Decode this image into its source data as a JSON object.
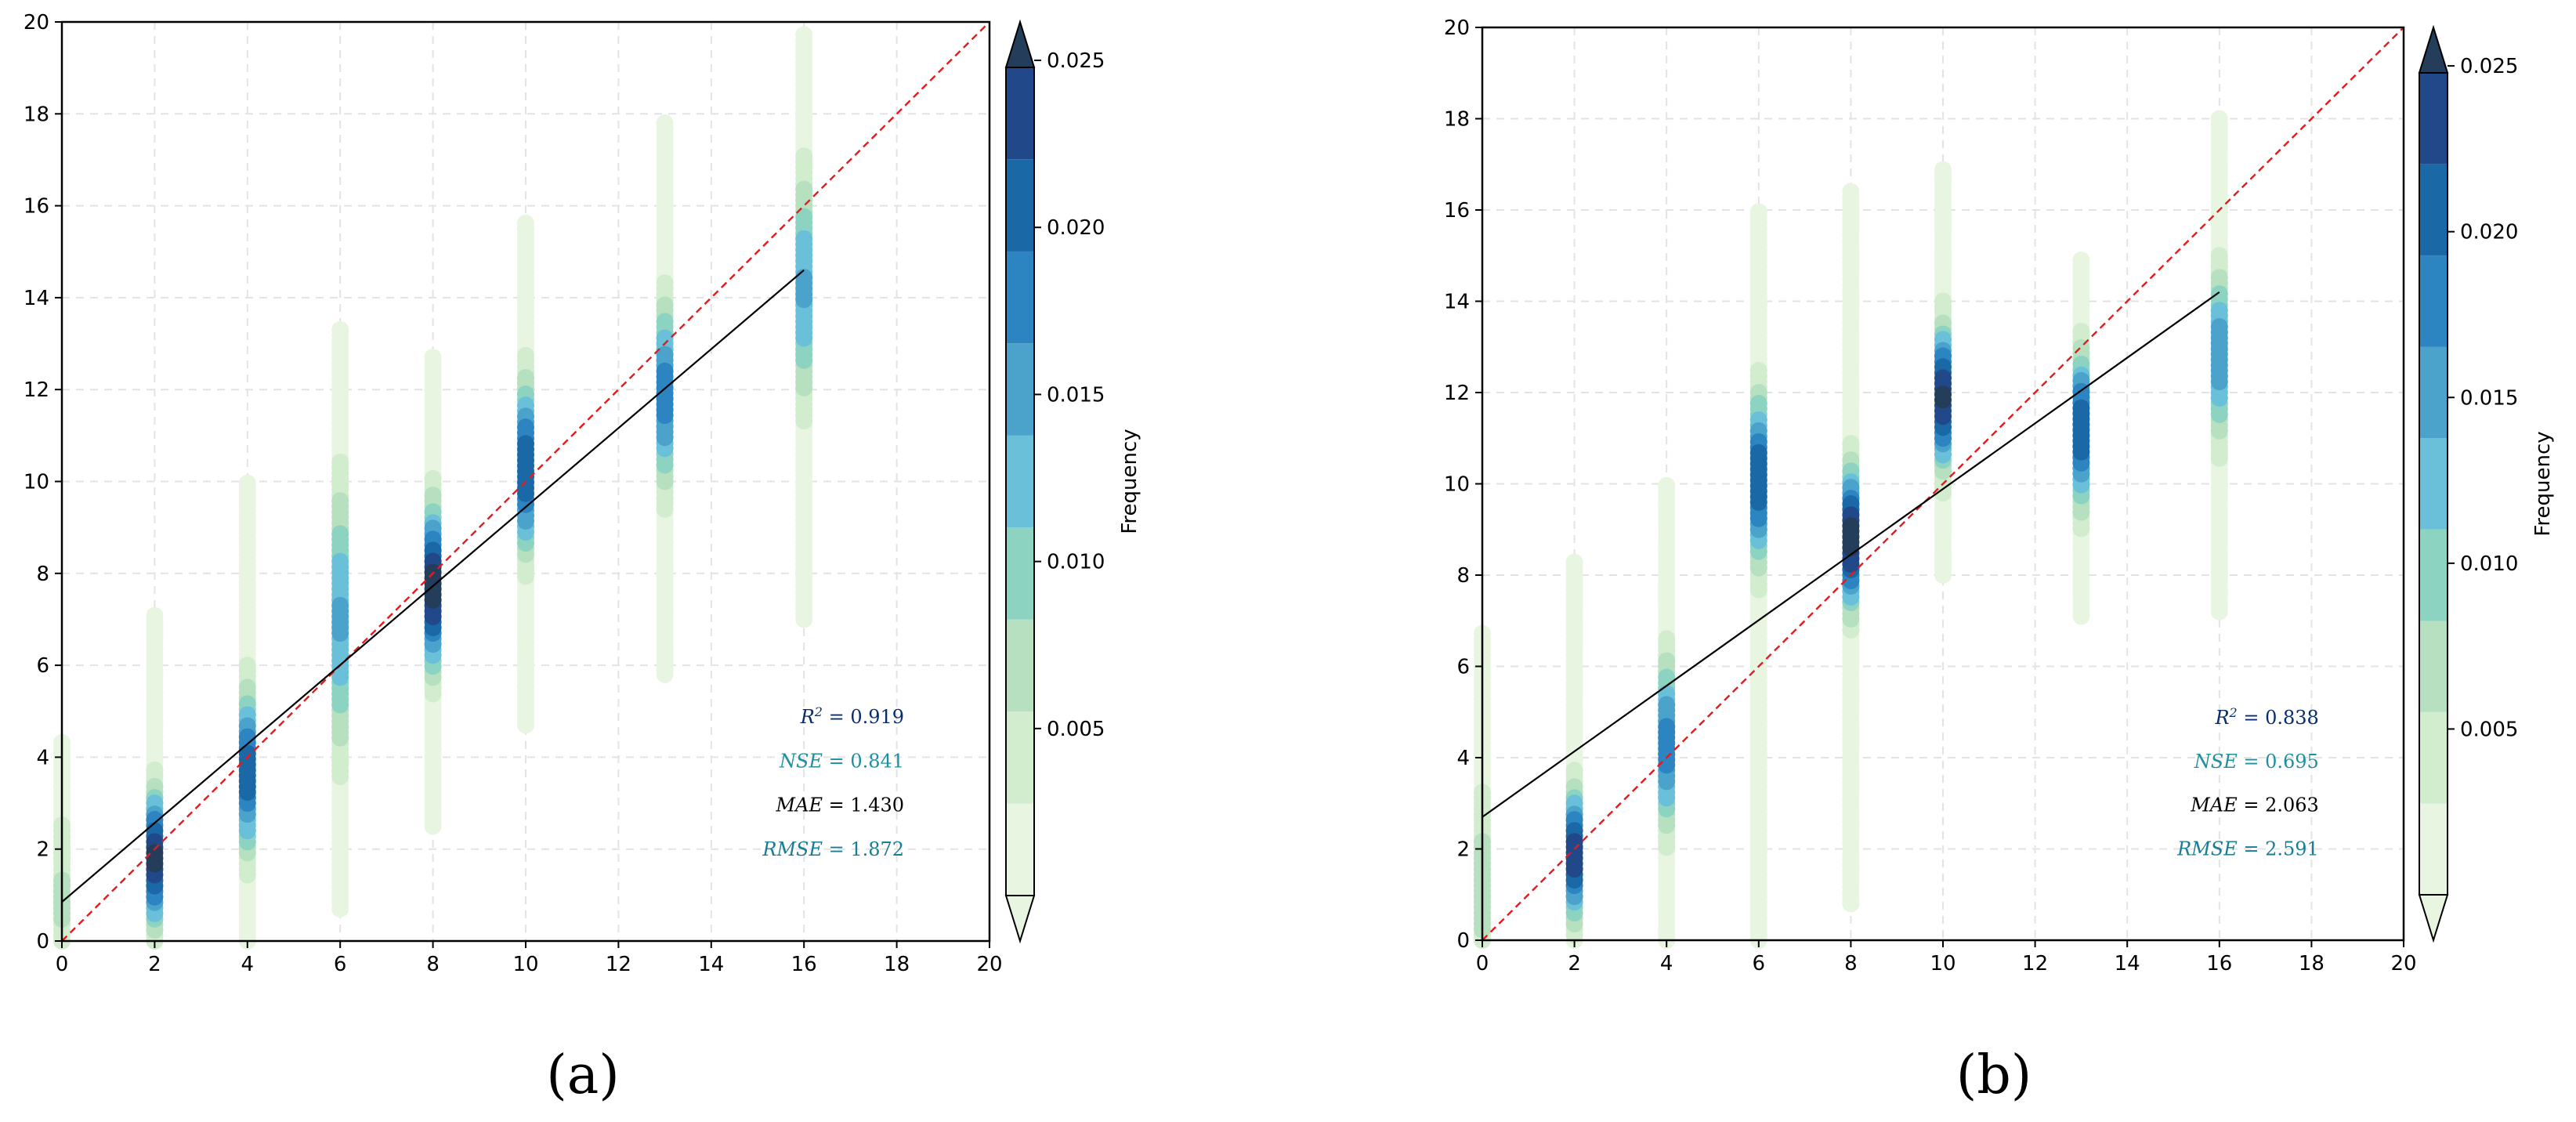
{
  "chart_data": [
    {
      "type": "scatter",
      "panel_label": "(a)",
      "xlim": [
        0,
        20
      ],
      "ylim": [
        0,
        20
      ],
      "xticks": [
        0,
        2,
        4,
        6,
        8,
        10,
        12,
        14,
        16,
        18,
        20
      ],
      "yticks": [
        0,
        2,
        4,
        6,
        8,
        10,
        12,
        14,
        16,
        18,
        20
      ],
      "grid": true,
      "identity_line": {
        "color": "#e41a1c",
        "style": "dashed",
        "from": [
          0,
          0
        ],
        "to": [
          20,
          20
        ]
      },
      "fit_line": {
        "color": "#000000",
        "from": [
          0,
          0.85
        ],
        "to": [
          16,
          14.6
        ]
      },
      "columns": [
        {
          "x": 0,
          "ymin": 0,
          "ymax": 4.4,
          "center": 0.9,
          "spread": 1.3,
          "peak": 0.006
        },
        {
          "x": 2,
          "ymin": 0,
          "ymax": 7.1,
          "center": 1.8,
          "spread": 0.95,
          "peak": 0.025
        },
        {
          "x": 4,
          "ymin": 0,
          "ymax": 10.0,
          "center": 3.7,
          "spread": 1.15,
          "peak": 0.021
        },
        {
          "x": 6,
          "ymin": 0.7,
          "ymax": 13.3,
          "center": 7.0,
          "spread": 1.9,
          "peak": 0.014
        },
        {
          "x": 8,
          "ymin": 2.5,
          "ymax": 12.8,
          "center": 7.7,
          "spread": 1.15,
          "peak": 0.026
        },
        {
          "x": 10,
          "ymin": 4.7,
          "ymax": 15.7,
          "center": 10.3,
          "spread": 1.2,
          "peak": 0.022
        },
        {
          "x": 13,
          "ymin": 5.8,
          "ymax": 17.9,
          "center": 11.9,
          "spread": 1.3,
          "peak": 0.018
        },
        {
          "x": 16,
          "ymin": 7.0,
          "ymax": 19.8,
          "center": 14.2,
          "spread": 1.6,
          "peak": 0.014
        }
      ],
      "metrics": [
        {
          "name": "R",
          "sup": "2",
          "eq": " = 0.919",
          "color": "#0a2d6e"
        },
        {
          "name": "NSE",
          "sup": "",
          "eq": " = 0.841",
          "color": "#1e90a0"
        },
        {
          "name": "MAE",
          "sup": "",
          "eq": " = 1.430",
          "color": "#000000"
        },
        {
          "name": "RMSE",
          "sup": "",
          "eq": " = 1.872",
          "color": "#1a7d96"
        }
      ],
      "colorbar": {
        "label": "Frequency",
        "ticks": [
          0.005,
          0.01,
          0.015,
          0.02,
          0.025
        ],
        "tick_labels": [
          "0.005",
          "0.010",
          "0.015",
          "0.020",
          "0.025"
        ],
        "levels": [
          0,
          0.00275,
          0.00551,
          0.00826,
          0.01102,
          0.01377,
          0.01653,
          0.01928,
          0.02204,
          0.02479
        ],
        "max": 0.02479,
        "extend": "both"
      }
    },
    {
      "type": "scatter",
      "panel_label": "(b)",
      "xlim": [
        0,
        20
      ],
      "ylim": [
        0,
        20
      ],
      "xticks": [
        0,
        2,
        4,
        6,
        8,
        10,
        12,
        14,
        16,
        18,
        20
      ],
      "yticks": [
        0,
        2,
        4,
        6,
        8,
        10,
        12,
        14,
        16,
        18,
        20
      ],
      "grid": true,
      "identity_line": {
        "color": "#e41a1c",
        "style": "dashed",
        "from": [
          0,
          0
        ],
        "to": [
          20,
          20
        ]
      },
      "fit_line": {
        "color": "#000000",
        "from": [
          0,
          2.7
        ],
        "to": [
          16,
          14.2
        ]
      },
      "columns": [
        {
          "x": 0,
          "ymin": 0,
          "ymax": 6.8,
          "center": 1.2,
          "spread": 1.5,
          "peak": 0.007
        },
        {
          "x": 2,
          "ymin": 0,
          "ymax": 8.3,
          "center": 1.9,
          "spread": 0.9,
          "peak": 0.024
        },
        {
          "x": 4,
          "ymin": 0,
          "ymax": 10.0,
          "center": 4.3,
          "spread": 1.2,
          "peak": 0.018
        },
        {
          "x": 6,
          "ymin": 0,
          "ymax": 16.0,
          "center": 10.1,
          "spread": 1.2,
          "peak": 0.022
        },
        {
          "x": 8,
          "ymin": 0.8,
          "ymax": 16.4,
          "center": 8.8,
          "spread": 1.0,
          "peak": 0.026
        },
        {
          "x": 10,
          "ymin": 8.0,
          "ymax": 16.9,
          "center": 11.9,
          "spread": 1.0,
          "peak": 0.025
        },
        {
          "x": 13,
          "ymin": 7.1,
          "ymax": 15.0,
          "center": 11.2,
          "spread": 1.1,
          "peak": 0.022
        },
        {
          "x": 16,
          "ymin": 7.2,
          "ymax": 18.0,
          "center": 12.8,
          "spread": 1.2,
          "peak": 0.016
        }
      ],
      "metrics": [
        {
          "name": "R",
          "sup": "2",
          "eq": " = 0.838",
          "color": "#0a2d6e"
        },
        {
          "name": "NSE",
          "sup": "",
          "eq": " = 0.695",
          "color": "#1e90a0"
        },
        {
          "name": "MAE",
          "sup": "",
          "eq": " = 2.063",
          "color": "#000000"
        },
        {
          "name": "RMSE",
          "sup": "",
          "eq": " = 2.591",
          "color": "#1a7d96"
        }
      ],
      "colorbar": {
        "label": "Frequency",
        "ticks": [
          0.005,
          0.01,
          0.015,
          0.02,
          0.025
        ],
        "tick_labels": [
          "0.005",
          "0.010",
          "0.015",
          "0.020",
          "0.025"
        ],
        "levels": [
          0,
          0.00275,
          0.00551,
          0.00826,
          0.01102,
          0.01377,
          0.01653,
          0.01928,
          0.02204,
          0.02479
        ],
        "max": 0.02479,
        "extend": "both"
      }
    }
  ],
  "palette": [
    "#e7f5e1",
    "#d2ecce",
    "#b6e0bf",
    "#8dd3c1",
    "#6abfd9",
    "#4ba2cb",
    "#2c84c0",
    "#1a69a6",
    "#21498a",
    "#243d5a"
  ]
}
